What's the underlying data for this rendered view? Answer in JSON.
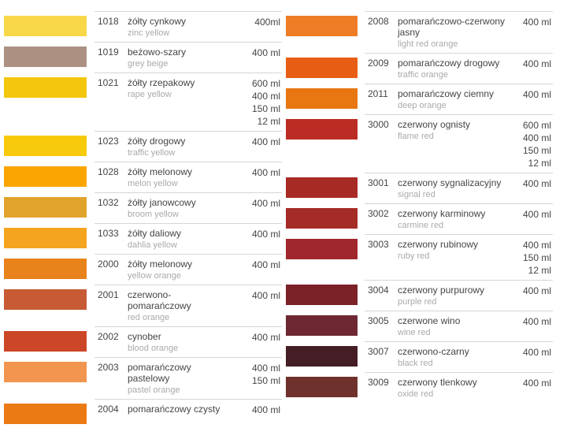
{
  "columns": [
    {
      "rows": [
        {
          "code": "1018",
          "name_pl": "żółty cynkowy",
          "name_en": "zinc yellow",
          "volumes": [
            "400ml"
          ],
          "swatch": "#F8D748"
        },
        {
          "code": "1019",
          "name_pl": "beżowo-szary",
          "name_en": "grey beige",
          "volumes": [
            "400 ml"
          ],
          "swatch": "#AC9183"
        },
        {
          "code": "1021",
          "name_pl": "żółty rzepakowy",
          "name_en": "rape yellow",
          "volumes": [
            "600 ml",
            "400 ml",
            "150 ml",
            "12 ml"
          ],
          "swatch": "#F3C70D"
        },
        {
          "code": "1023",
          "name_pl": "żółty drogowy",
          "name_en": "traffic yellow",
          "volumes": [
            "400 ml"
          ],
          "swatch": "#F7CB0B"
        },
        {
          "code": "1028",
          "name_pl": "żółty melonowy",
          "name_en": "melon yellow",
          "volumes": [
            "400 ml"
          ],
          "swatch": "#FAA501"
        },
        {
          "code": "1032",
          "name_pl": "żółty janowcowy",
          "name_en": "broom yellow",
          "volumes": [
            "400 ml"
          ],
          "swatch": "#E1A32B"
        },
        {
          "code": "1033",
          "name_pl": "żółty daliowy",
          "name_en": "dahlia yellow",
          "volumes": [
            "400 ml"
          ],
          "swatch": "#F4A41F"
        },
        {
          "code": "2000",
          "name_pl": "żółty melonowy",
          "name_en": "yellow orange",
          "volumes": [
            "400 ml"
          ],
          "swatch": "#E8821B"
        },
        {
          "code": "2001",
          "name_pl": "czerwono-pomarańczowy",
          "name_en": "red orange",
          "volumes": [
            "400 ml"
          ],
          "swatch": "#C75B33"
        },
        {
          "code": "2002",
          "name_pl": "cynober",
          "name_en": "blood orange",
          "volumes": [
            "400 ml"
          ],
          "swatch": "#CC4727"
        },
        {
          "code": "2003",
          "name_pl": "pomarańczowy pastelowy",
          "name_en": "pastel orange",
          "volumes": [
            "400 ml",
            "150 ml"
          ],
          "swatch": "#F2954F"
        },
        {
          "code": "2004",
          "name_pl": "pomarańczowy czysty",
          "name_en": "",
          "volumes": [
            "400 ml"
          ],
          "swatch": "#EC7A14"
        }
      ]
    },
    {
      "rows": [
        {
          "code": "2008",
          "name_pl": "pomarańczowo-czerwony jasny",
          "name_en": "light red orange",
          "volumes": [
            "400 ml"
          ],
          "swatch": "#EF7D26"
        },
        {
          "code": "2009",
          "name_pl": "pomarańczowy drogowy",
          "name_en": "traffic orange",
          "volumes": [
            "400 ml"
          ],
          "swatch": "#E75D13"
        },
        {
          "code": "2011",
          "name_pl": "pomarańczowy ciemny",
          "name_en": "deep orange",
          "volumes": [
            "400 ml"
          ],
          "swatch": "#E87712"
        },
        {
          "code": "3000",
          "name_pl": "czerwony ognisty",
          "name_en": "flame red",
          "volumes": [
            "600 ml",
            "400 ml",
            "150 ml",
            "12 ml"
          ],
          "swatch": "#BB2D24"
        },
        {
          "code": "3001",
          "name_pl": "czerwony sygnalizacyjny",
          "name_en": "signal red",
          "volumes": [
            "400 ml"
          ],
          "swatch": "#A82A24"
        },
        {
          "code": "3002",
          "name_pl": "czerwony karminowy",
          "name_en": "carmine red",
          "volumes": [
            "400 ml"
          ],
          "swatch": "#A52B27"
        },
        {
          "code": "3003",
          "name_pl": "czerwony rubinowy",
          "name_en": "ruby red",
          "volumes": [
            "400 ml",
            "150 ml",
            "12 ml"
          ],
          "swatch": "#A1272F"
        },
        {
          "code": "3004",
          "name_pl": "czerwony purpurowy",
          "name_en": "purple red",
          "volumes": [
            "400 ml"
          ],
          "swatch": "#7B2128"
        },
        {
          "code": "3005",
          "name_pl": "czerwone wino",
          "name_en": "wine red",
          "volumes": [
            "400 ml"
          ],
          "swatch": "#6E2833"
        },
        {
          "code": "3007",
          "name_pl": "czerwono-czarny",
          "name_en": "black red",
          "volumes": [
            "400 ml"
          ],
          "swatch": "#441E24"
        },
        {
          "code": "3009",
          "name_pl": "czerwony tlenkowy",
          "name_en": "oxide red",
          "volumes": [
            "400 ml"
          ],
          "swatch": "#6F312B"
        }
      ]
    }
  ]
}
